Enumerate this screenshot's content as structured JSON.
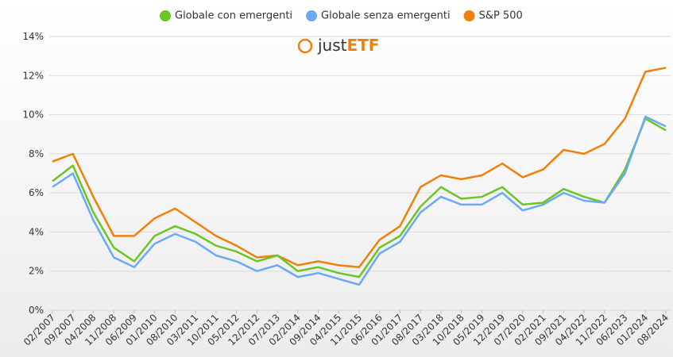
{
  "chart_data": {
    "type": "line",
    "logo": {
      "prefix": "just",
      "suffix": "ETF"
    },
    "x": [
      "02/2007",
      "09/2007",
      "04/2008",
      "11/2008",
      "06/2009",
      "01/2010",
      "08/2010",
      "03/2011",
      "10/2011",
      "05/2012",
      "12/2012",
      "07/2013",
      "02/2014",
      "09/2014",
      "04/2015",
      "11/2015",
      "06/2016",
      "01/2017",
      "08/2017",
      "03/2018",
      "10/2018",
      "05/2019",
      "12/2019",
      "07/2020",
      "02/2021",
      "09/2021",
      "04/2022",
      "11/2022",
      "06/2023",
      "01/2024",
      "08/2024"
    ],
    "series": [
      {
        "name": "Globale con emergenti",
        "color": "#6cc524",
        "values": [
          6.6,
          7.4,
          5.0,
          3.2,
          2.5,
          3.8,
          4.3,
          3.9,
          3.3,
          3.0,
          2.5,
          2.8,
          2.0,
          2.2,
          1.9,
          1.7,
          3.2,
          3.8,
          5.3,
          6.3,
          5.7,
          5.8,
          6.3,
          5.4,
          5.5,
          6.2,
          5.8,
          5.5,
          7.2,
          9.8,
          9.2
        ]
      },
      {
        "name": "Globale senza emergenti",
        "color": "#6ba9f5",
        "values": [
          6.3,
          7.0,
          4.6,
          2.7,
          2.2,
          3.4,
          3.9,
          3.5,
          2.8,
          2.5,
          2.0,
          2.3,
          1.7,
          1.9,
          1.6,
          1.3,
          2.9,
          3.5,
          5.0,
          5.8,
          5.4,
          5.4,
          6.0,
          5.1,
          5.4,
          6.0,
          5.6,
          5.5,
          7.0,
          9.9,
          9.4
        ]
      },
      {
        "name": "S&P 500",
        "color": "#f08009",
        "values": [
          7.6,
          8.0,
          5.8,
          3.8,
          3.8,
          4.7,
          5.2,
          4.5,
          3.8,
          3.3,
          2.7,
          2.8,
          2.3,
          2.5,
          2.3,
          2.2,
          3.6,
          4.3,
          6.3,
          6.9,
          6.7,
          6.9,
          7.5,
          6.8,
          7.2,
          8.2,
          8.0,
          8.5,
          9.8,
          12.2,
          12.4
        ]
      }
    ],
    "ylim": [
      0,
      14
    ],
    "yticks": [
      {
        "value": 0,
        "label": "0%"
      },
      {
        "value": 2,
        "label": "2%"
      },
      {
        "value": 4,
        "label": "4%"
      },
      {
        "value": 6,
        "label": "6%"
      },
      {
        "value": 8,
        "label": "8%"
      },
      {
        "value": 10,
        "label": "10%"
      },
      {
        "value": 12,
        "label": "12%"
      },
      {
        "value": 14,
        "label": "14%"
      }
    ],
    "grid": true
  }
}
